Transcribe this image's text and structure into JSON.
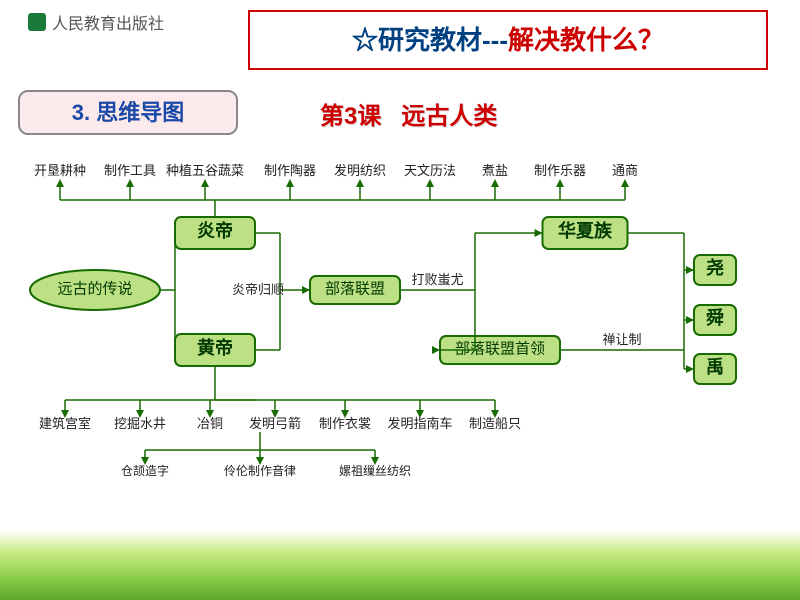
{
  "logo_text": "人民教育出版社",
  "title": {
    "a": "☆研究教材---",
    "b": "解决教什么？"
  },
  "section": "3. 思维导图",
  "subtitle": {
    "a": "第3课",
    "b": "远古人类"
  },
  "nodes": {
    "origin": "远古的传说",
    "yan": "炎帝",
    "huang": "黄帝",
    "union": "部落联盟",
    "huaxia": "华夏族",
    "leader": "部落联盟首领",
    "yao": "尧",
    "shun": "舜",
    "yu": "禹"
  },
  "edge_labels": {
    "submit": "炎帝归顺",
    "defeat": "打败蚩尤",
    "shanrang": "禅让制"
  },
  "yan_items": [
    "开垦耕种",
    "制作工具",
    "种植五谷蔬菜",
    "制作陶器",
    "发明纺织",
    "天文历法",
    "煮盐",
    "制作乐器",
    "通商"
  ],
  "huang_items": [
    "建筑宫室",
    "挖掘水井",
    "冶铜",
    "发明弓箭",
    "制作衣裳",
    "发明指南车",
    "制造船只"
  ],
  "huang_sub": [
    "仓颉造字",
    "伶伦制作音律",
    "嫘祖缫丝纺织"
  ],
  "colors": {
    "node_fill": "#bde085",
    "stroke": "#176b00",
    "title_border": "#c00",
    "section_bg": "#fce9ec"
  }
}
